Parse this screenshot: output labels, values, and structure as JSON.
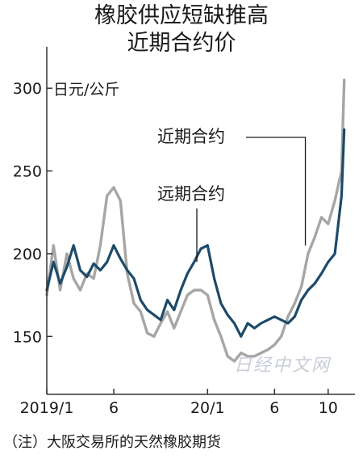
{
  "title_line1": "橡胶供应短缺推高",
  "title_line2": "近期合约价",
  "note": "（注）大阪交易所的天然橡胶期货",
  "watermark": "日经中文网",
  "colors": {
    "near": "#1d4a68",
    "far": "#a6a6a6",
    "axis": "#333333"
  },
  "chart_data": {
    "type": "line",
    "ylabel": "日元/公斤",
    "ylim": [
      115,
      325
    ],
    "yticks": [
      150,
      200,
      250,
      300
    ],
    "xlim": [
      0,
      23
    ],
    "xticks": [
      {
        "x": 0,
        "label": "2019/1"
      },
      {
        "x": 5,
        "label": "6"
      },
      {
        "x": 12,
        "label": "20/1"
      },
      {
        "x": 17,
        "label": "6"
      },
      {
        "x": 21,
        "label": "10"
      }
    ],
    "series": [
      {
        "name": "近期合约",
        "key": "near",
        "x": [
          0,
          0.5,
          1,
          1.5,
          2,
          2.5,
          3,
          3.5,
          4,
          4.5,
          5,
          5.5,
          6,
          6.5,
          7,
          7.5,
          8,
          8.5,
          9,
          9.5,
          10,
          10.5,
          11,
          11.5,
          12,
          12.5,
          13,
          13.5,
          14,
          14.5,
          15,
          15.5,
          16,
          16.5,
          17,
          17.5,
          18,
          18.5,
          19,
          19.5,
          20,
          20.5,
          21,
          21.5,
          22,
          22.2
        ],
        "y": [
          178,
          195,
          182,
          192,
          205,
          190,
          186,
          194,
          190,
          195,
          205,
          197,
          190,
          185,
          172,
          166,
          163,
          160,
          172,
          166,
          178,
          188,
          195,
          203,
          205,
          185,
          170,
          163,
          158,
          150,
          158,
          155,
          158,
          160,
          162,
          160,
          158,
          162,
          172,
          178,
          182,
          188,
          195,
          200,
          235,
          275
        ]
      },
      {
        "name": "远期合约",
        "key": "far",
        "x": [
          0,
          0.5,
          1,
          1.5,
          2,
          2.5,
          3,
          3.5,
          4,
          4.5,
          5,
          5.5,
          6,
          6.5,
          7,
          7.5,
          8,
          8.5,
          9,
          9.5,
          10,
          10.5,
          11,
          11.5,
          12,
          12.5,
          13,
          13.5,
          14,
          14.5,
          15,
          15.5,
          16,
          16.5,
          17,
          17.5,
          18,
          18.5,
          19,
          19.5,
          20,
          20.5,
          21,
          21.5,
          22,
          22.2
        ],
        "y": [
          175,
          205,
          178,
          200,
          185,
          178,
          188,
          185,
          205,
          235,
          240,
          232,
          188,
          170,
          165,
          152,
          150,
          158,
          165,
          155,
          165,
          175,
          178,
          178,
          175,
          160,
          150,
          138,
          135,
          140,
          138,
          138,
          140,
          142,
          145,
          150,
          162,
          170,
          180,
          200,
          210,
          222,
          218,
          232,
          250,
          305
        ]
      }
    ],
    "annotations": [
      {
        "text": "近期合约",
        "series": "near"
      },
      {
        "text": "远期合约",
        "series": "far"
      }
    ]
  }
}
